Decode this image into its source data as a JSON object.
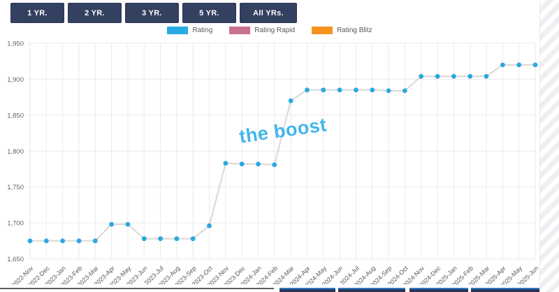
{
  "toolbar": {
    "buttons": [
      {
        "label": "1 YR."
      },
      {
        "label": "2 YR."
      },
      {
        "label": "3 YR."
      },
      {
        "label": "5 YR."
      },
      {
        "label": "All YRs."
      }
    ]
  },
  "legend": {
    "items": [
      {
        "label": "Rating",
        "color": "#29abe2"
      },
      {
        "label": "Rating Rapid",
        "color": "#c9708f"
      },
      {
        "label": "Rating Blitz",
        "color": "#f6921e"
      }
    ]
  },
  "watermark": {
    "text": "the boost",
    "color": "#41b6ea"
  },
  "chart_data": {
    "type": "line",
    "title": "",
    "xlabel": "",
    "ylabel": "",
    "categories": [
      "2022-Nov",
      "2022-Dec",
      "2023-Jan",
      "2023-Feb",
      "2023-Mar",
      "2023-Apr",
      "2023-May",
      "2023-Jun",
      "2023-Jul",
      "2023-Aug",
      "2023-Sep",
      "2023-Oct",
      "2023-Nov",
      "2023-Dec",
      "2024-Jan",
      "2024-Feb",
      "2024-Mar",
      "2024-Apr",
      "2024-May",
      "2024-Jun",
      "2024-Jul",
      "2024-Aug",
      "2024-Sep",
      "2024-Oct",
      "2024-Nov",
      "2024-Dec",
      "2025-Jan",
      "2025-Feb",
      "2025-Mar",
      "2025-Apr",
      "2025-May",
      "2025-Jun"
    ],
    "series": [
      {
        "name": "Rating",
        "values": [
          1675,
          1675,
          1675,
          1675,
          1675,
          1698,
          1698,
          1678,
          1678,
          1678,
          1678,
          1696,
          1783,
          1782,
          1782,
          1781,
          1870,
          1885,
          1885,
          1885,
          1885,
          1885,
          1884,
          1884,
          1904,
          1904,
          1904,
          1904,
          1904,
          1920,
          1920,
          1920
        ]
      }
    ],
    "ylim": [
      1650,
      1950
    ],
    "ytick_step": 50,
    "grid": true,
    "legend_position": "top",
    "line_color": "#d8d8d8",
    "marker_color": "#2aa9e0",
    "grid_color": "#eaeaea",
    "tick_color": "#5f6368"
  },
  "colors": {
    "button_bg": "#344060",
    "page_bg": "#ffffff"
  }
}
